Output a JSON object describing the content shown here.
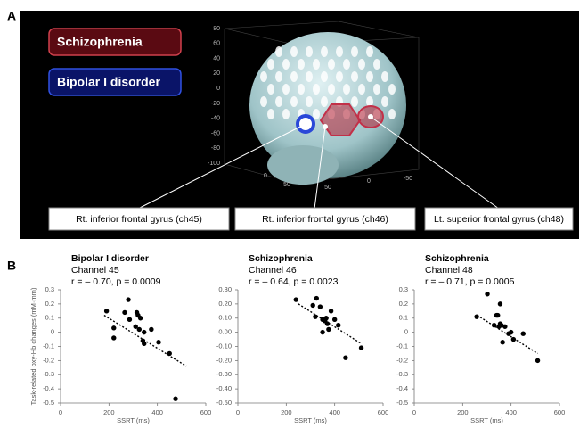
{
  "panel_a": {
    "label": "A",
    "legend": [
      "Schizophrenia",
      "Bipolar I disorder"
    ],
    "z_ticks": [
      "80",
      "60",
      "40",
      "20",
      "0",
      "-20",
      "-40",
      "-60",
      "-80",
      "-100"
    ],
    "floor_ticks": [
      "0",
      "50",
      "50",
      "0",
      "-50"
    ],
    "callouts": [
      "Rt. inferior frontal gyrus (ch45)",
      "Rt. inferior frontal gyrus (ch46)",
      "Lt. superior frontal gyrus (ch48)"
    ]
  },
  "panel_b_label": "B",
  "chart_data": [
    {
      "type": "scatter",
      "title": "Bipolar I disorder",
      "subtitle": "Channel 45",
      "annotation": "r = – 0.70, p = 0.0009",
      "xlabel": "SSRT (ms)",
      "ylabel": "Task-related oxy-Hb changes (mM·mm)",
      "x": [
        190,
        220,
        220,
        265,
        280,
        285,
        315,
        320,
        310,
        325,
        340,
        345,
        345,
        375,
        405,
        450,
        475,
        330
      ],
      "values": [
        0.15,
        0.03,
        -0.04,
        0.14,
        0.23,
        0.09,
        0.14,
        0.12,
        0.04,
        0.02,
        -0.06,
        -0.08,
        0.0,
        0.02,
        -0.07,
        -0.15,
        -0.47,
        0.1
      ],
      "fit": {
        "x": [
          180,
          520
        ],
        "values": [
          0.12,
          -0.24
        ]
      },
      "color": "#000000",
      "xlim": [
        0,
        600
      ],
      "xticks": [
        0,
        200,
        400,
        600
      ],
      "ylim": [
        -0.5,
        0.3
      ],
      "yticks": [
        0.3,
        0.2,
        0.1,
        0,
        -0.1,
        -0.2,
        -0.3,
        -0.4,
        -0.5
      ]
    },
    {
      "type": "scatter",
      "title": "Schizophrenia",
      "subtitle": "Channel 46",
      "annotation": "r = – 0.64, p = 0.0023",
      "xlabel": "SSRT (ms)",
      "x": [
        240,
        310,
        325,
        320,
        340,
        350,
        360,
        365,
        370,
        350,
        375,
        385,
        400,
        415,
        445,
        510
      ],
      "values": [
        0.23,
        0.19,
        0.24,
        0.11,
        0.18,
        0.09,
        0.08,
        0.1,
        0.06,
        0.0,
        0.02,
        0.15,
        0.09,
        0.05,
        -0.18,
        -0.11
      ],
      "fit": {
        "x": [
          250,
          510
        ],
        "values": [
          0.2,
          -0.08
        ]
      },
      "color": "#000000",
      "xlim": [
        0,
        600
      ],
      "xticks": [
        0,
        200,
        400,
        600
      ],
      "ylim": [
        -0.5,
        0.3
      ],
      "yticks": [
        {
          "value": 0.3,
          "label": "0.30"
        },
        {
          "value": 0.2,
          "label": "0.20"
        },
        {
          "value": 0.1,
          "label": "0.10"
        },
        {
          "value": 0,
          "label": "0.00"
        },
        {
          "value": -0.1,
          "label": "-0.10"
        },
        {
          "value": -0.2,
          "label": "-0.20"
        },
        {
          "value": -0.3,
          "label": "-0.30"
        },
        {
          "value": -0.4,
          "label": "-0.40"
        },
        {
          "value": -0.5,
          "label": "-0.50"
        }
      ]
    },
    {
      "type": "scatter",
      "title": "Schizophrenia",
      "subtitle": "Channel 48",
      "annotation": "r = – 0.71, p = 0.0005",
      "xlabel": "SSRT (ms)",
      "x": [
        258,
        302,
        330,
        345,
        350,
        355,
        360,
        365,
        375,
        340,
        390,
        400,
        410,
        450,
        510,
        355
      ],
      "values": [
        0.11,
        0.27,
        0.05,
        0.12,
        0.04,
        0.2,
        0.05,
        -0.07,
        0.04,
        0.12,
        -0.01,
        0.0,
        -0.05,
        -0.01,
        -0.2,
        0.06
      ],
      "fit": {
        "x": [
          260,
          510
        ],
        "values": [
          0.12,
          -0.15
        ]
      },
      "color": "#000000",
      "xlim": [
        0,
        600
      ],
      "xticks": [
        0,
        200,
        400,
        600
      ],
      "ylim": [
        -0.5,
        0.3
      ],
      "yticks": [
        0.3,
        0.2,
        0.1,
        0,
        -0.1,
        -0.2,
        -0.3,
        -0.4,
        -0.5
      ]
    }
  ]
}
